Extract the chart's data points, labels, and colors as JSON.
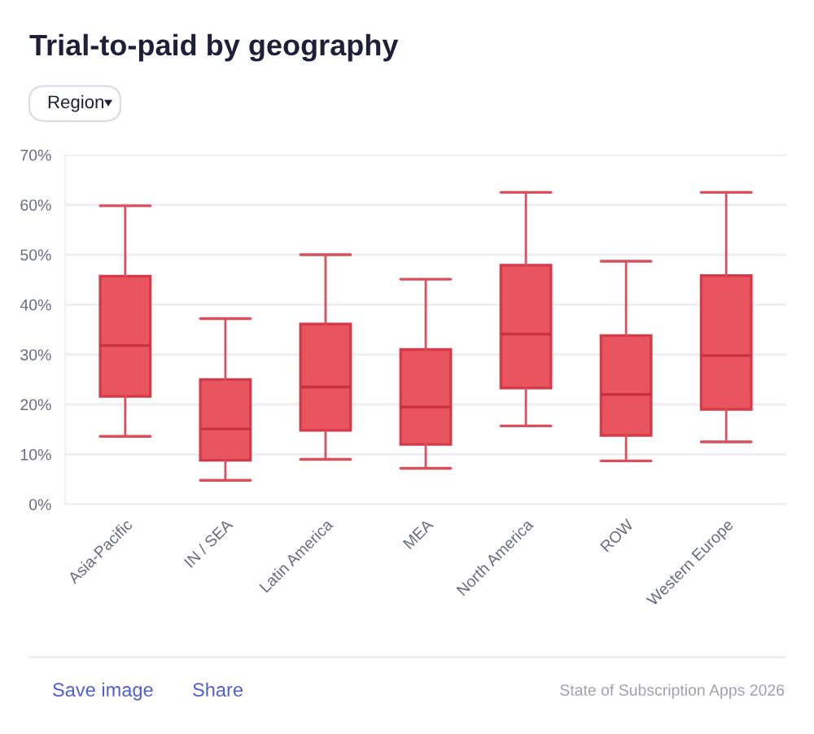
{
  "chart_data": {
    "type": "box",
    "title": "Trial-to-paid by geography",
    "categories": [
      "Asia-Pacific",
      "IN / SEA",
      "Latin America",
      "MEA",
      "North America",
      "ROW",
      "Western Europe"
    ],
    "boxes": [
      {
        "low": 13.6,
        "q1": 21.6,
        "median": 31.8,
        "q3": 45.7,
        "high": 59.8
      },
      {
        "low": 4.8,
        "q1": 8.8,
        "median": 15.1,
        "q3": 25.0,
        "high": 37.2
      },
      {
        "low": 9.0,
        "q1": 14.8,
        "median": 23.5,
        "q3": 36.1,
        "high": 50.0
      },
      {
        "low": 7.2,
        "q1": 12.0,
        "median": 19.5,
        "q3": 31.0,
        "high": 45.1
      },
      {
        "low": 15.7,
        "q1": 23.3,
        "median": 34.1,
        "q3": 47.9,
        "high": 62.5
      },
      {
        "low": 8.7,
        "q1": 13.8,
        "median": 22.0,
        "q3": 33.8,
        "high": 48.7
      },
      {
        "low": 12.5,
        "q1": 19.0,
        "median": 29.8,
        "q3": 45.8,
        "high": 62.5
      }
    ],
    "color": "#e8555f",
    "ylim": [
      0,
      70
    ],
    "yticks": [
      {
        "value": 0,
        "label": "0%"
      },
      {
        "value": 10,
        "label": "10%"
      },
      {
        "value": 20,
        "label": "20%"
      },
      {
        "value": 30,
        "label": "30%"
      },
      {
        "value": 40,
        "label": "40%"
      },
      {
        "value": 50,
        "label": "50%"
      },
      {
        "value": 60,
        "label": "60%"
      },
      {
        "value": 70,
        "label": "70%"
      }
    ],
    "grid": "y",
    "annotations": [
      "Region",
      "Save image",
      "Share",
      "State of Subscription Apps 2026"
    ]
  }
}
